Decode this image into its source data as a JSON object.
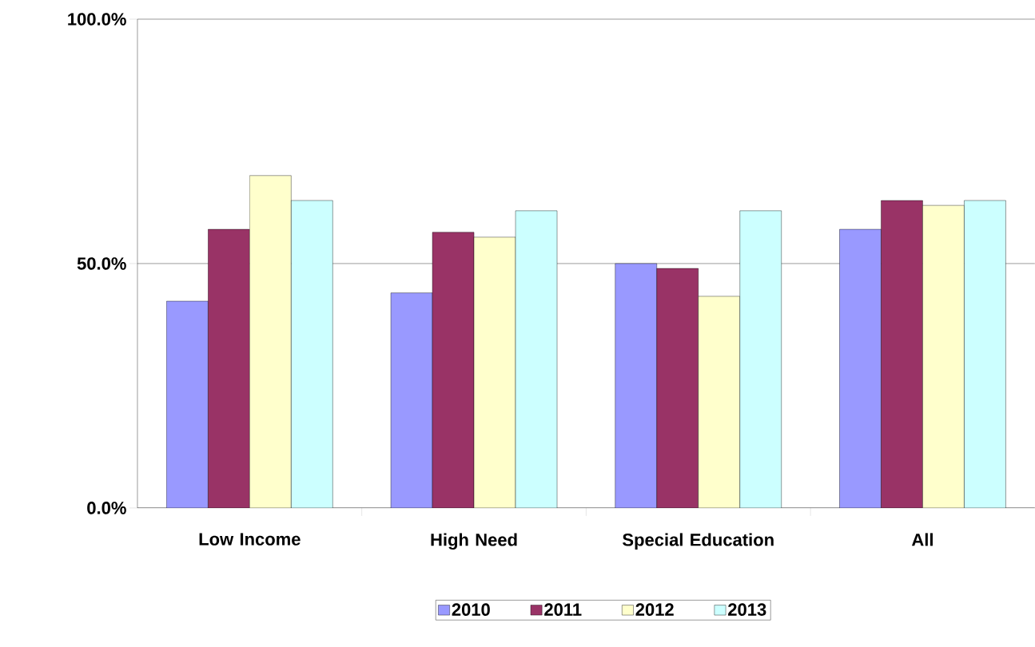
{
  "chart_data": {
    "type": "bar",
    "categories": [
      "Low Income",
      "High Need",
      "Special Education",
      "All"
    ],
    "series": [
      {
        "name": "2010",
        "color": "#9999ff",
        "values": [
          42.3,
          44.0,
          50.0,
          57.0
        ]
      },
      {
        "name": "2011",
        "color": "#993366",
        "values": [
          57.0,
          56.4,
          49.0,
          62.9
        ]
      },
      {
        "name": "2012",
        "color": "#ffffcc",
        "values": [
          68.0,
          55.4,
          43.3,
          61.9
        ]
      },
      {
        "name": "2013",
        "color": "#ccffff",
        "values": [
          62.9,
          60.8,
          60.8,
          62.9
        ]
      }
    ],
    "ylim": [
      0,
      100
    ],
    "yticks": [
      {
        "value": 0,
        "label": "0.0%"
      },
      {
        "value": 50,
        "label": "50.0%"
      },
      {
        "value": 100,
        "label": "100.0%"
      }
    ],
    "grid": "y",
    "legend": "bottom"
  }
}
